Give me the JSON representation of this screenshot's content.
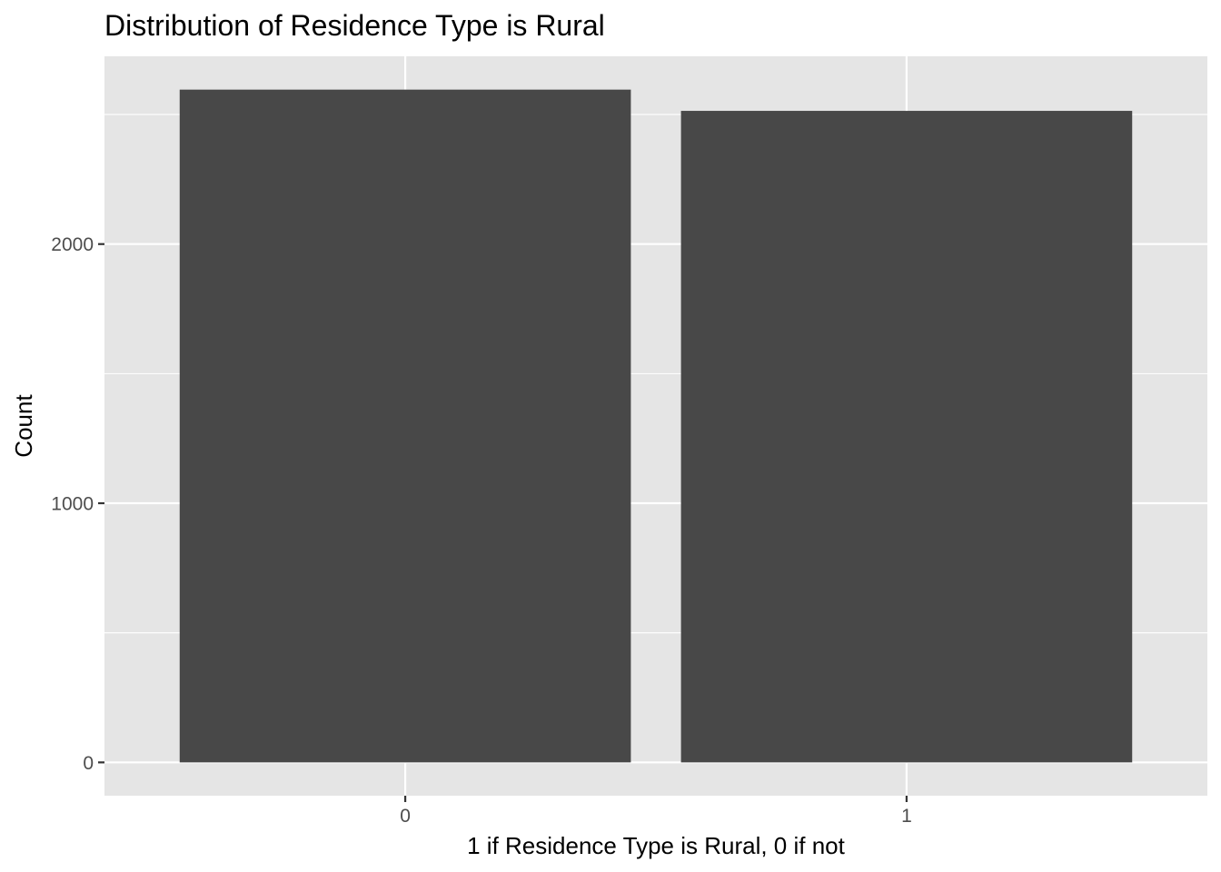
{
  "chart_data": {
    "type": "bar",
    "title": "Distribution of Residence Type is Rural",
    "xlabel": "1 if Residence Type is Rural, 0 if not",
    "ylabel": "Count",
    "categories": [
      "0",
      "1"
    ],
    "values": [
      2596,
      2514
    ],
    "ylim": [
      -128.5,
      2724.5
    ],
    "yticks": [
      0,
      1000,
      2000
    ],
    "y_minor_ticks": [
      500,
      1500,
      2500
    ],
    "grid": true,
    "colors": {
      "bar": "#484848",
      "panel": "#e5e5e5",
      "grid": "#ffffff"
    }
  }
}
